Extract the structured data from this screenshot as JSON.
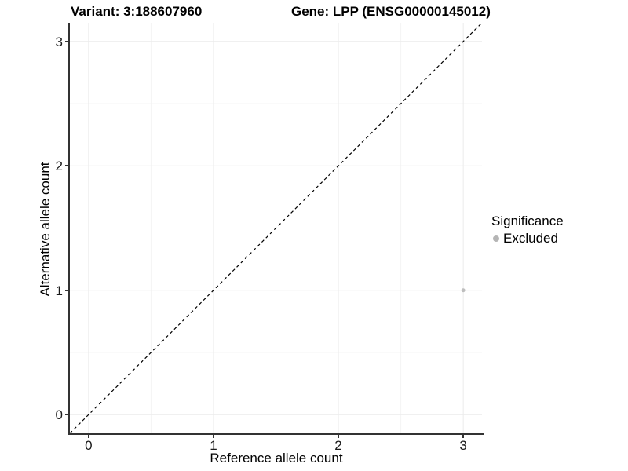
{
  "chart_data": {
    "type": "scatter",
    "title_left": "Variant: 3:188607960",
    "title_right": "Gene: LPP (ENSG00000145012)",
    "xlabel": "Reference allele count",
    "ylabel": "Alternative allele count",
    "xlim": [
      -0.15,
      3.15
    ],
    "ylim": [
      -0.15,
      3.15
    ],
    "x_ticks": [
      0,
      1,
      2,
      3
    ],
    "y_ticks": [
      0,
      1,
      2,
      3
    ],
    "minor_ticks": [
      0.5,
      1.5,
      2.5
    ],
    "grid": true,
    "points": [
      {
        "x": 3,
        "y": 1,
        "series": "Excluded"
      }
    ],
    "reference_line": {
      "slope": 1,
      "intercept": 0,
      "style": "dashed",
      "color": "#000000"
    },
    "legend": {
      "title": "Significance",
      "position": "right",
      "items": [
        {
          "label": "Excluded",
          "color": "#b5b5b5"
        }
      ]
    },
    "colors": {
      "point": "#bebebe",
      "axis": "#333333",
      "grid_major": "#ebebeb",
      "grid_minor": "#f4f4f4",
      "text": "#000000"
    }
  }
}
